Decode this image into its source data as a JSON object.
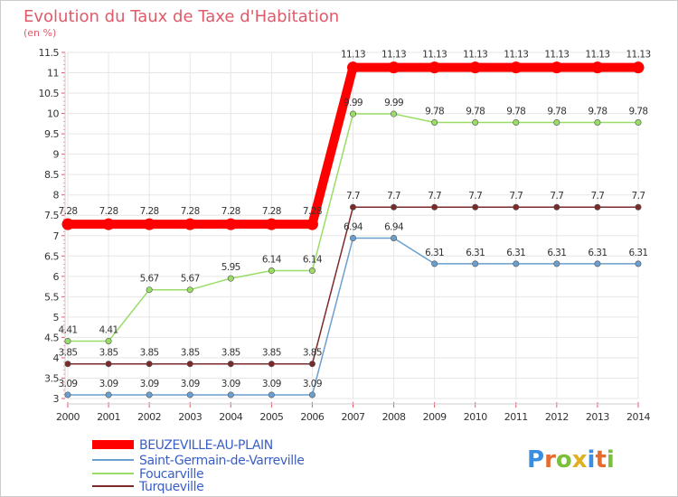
{
  "chart_data": {
    "type": "line",
    "title": "Evolution du Taux de Taxe d'Habitation",
    "ylabel": "(en %)",
    "xlabel": "",
    "x": [
      "2000",
      "2001",
      "2002",
      "2003",
      "2004",
      "2005",
      "2006",
      "2007",
      "2008",
      "2009",
      "2010",
      "2011",
      "2012",
      "2013",
      "2014"
    ],
    "ylim": [
      3,
      11.5
    ],
    "yticks": [
      3,
      3.5,
      4,
      4.5,
      5,
      5.5,
      6,
      6.5,
      7,
      7.5,
      8,
      8.5,
      9,
      9.5,
      10,
      10.5,
      11,
      11.5
    ],
    "series": [
      {
        "name": "BEUZEVILLE-AU-PLAIN",
        "color": "#ff0000",
        "labels": [
          "7.28",
          "7.28",
          "7.28",
          "7.28",
          "7.28",
          "7.28",
          "7.28",
          "11.13",
          "11.13",
          "11.13",
          "11.13",
          "11.13",
          "11.13",
          "11.13",
          "11.13"
        ],
        "values": [
          7.28,
          7.28,
          7.28,
          7.28,
          7.28,
          7.28,
          7.28,
          11.13,
          11.13,
          11.13,
          11.13,
          11.13,
          11.13,
          11.13,
          11.13
        ]
      },
      {
        "name": "Saint-Germain-de-Varreville",
        "color": "#6a9fcf",
        "labels": [
          "3.09",
          "3.09",
          "3.09",
          "3.09",
          "3.09",
          "3.09",
          "3.09",
          "6.94",
          "6.94",
          "6.31",
          "6.31",
          "6.31",
          "6.31",
          "6.31",
          "6.31"
        ],
        "values": [
          3.09,
          3.09,
          3.09,
          3.09,
          3.09,
          3.09,
          3.09,
          6.94,
          6.94,
          6.31,
          6.31,
          6.31,
          6.31,
          6.31,
          6.31
        ]
      },
      {
        "name": "Foucarville",
        "color": "#99dd66",
        "labels": [
          "4.41",
          "4.41",
          "5.67",
          "5.67",
          "5.95",
          "6.14",
          "6.14",
          "9.99",
          "9.99",
          "9.78",
          "9.78",
          "9.78",
          "9.78",
          "9.78",
          "9.78"
        ],
        "values": [
          4.41,
          4.41,
          5.67,
          5.67,
          5.95,
          6.14,
          6.14,
          9.99,
          9.99,
          9.78,
          9.78,
          9.78,
          9.78,
          9.78,
          9.78
        ]
      },
      {
        "name": "Turqueville",
        "color": "#7a2a2a",
        "labels": [
          "3.85",
          "3.85",
          "3.85",
          "3.85",
          "3.85",
          "3.85",
          "3.85",
          "7.7",
          "7.7",
          "7.7",
          "7.7",
          "7.7",
          "7.7",
          "7.7",
          "7.7"
        ],
        "values": [
          3.85,
          3.85,
          3.85,
          3.85,
          3.85,
          3.85,
          3.85,
          7.7,
          7.7,
          7.7,
          7.7,
          7.7,
          7.7,
          7.7,
          7.7
        ]
      }
    ]
  },
  "logo": {
    "letters": [
      "P",
      "r",
      "o",
      "x",
      "i",
      "t",
      "i"
    ],
    "colors": [
      "#3b8de0",
      "#e86a2c",
      "#7bbf3a",
      "#e0b020",
      "#3b8de0",
      "#e86a2c",
      "#7bbf3a"
    ]
  }
}
